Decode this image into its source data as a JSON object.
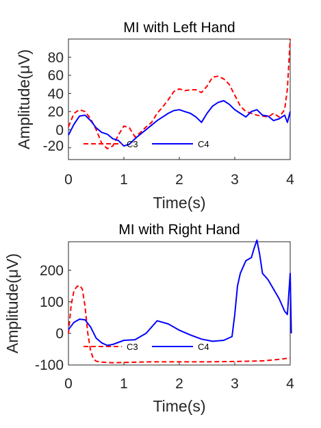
{
  "chart_data": [
    {
      "type": "line",
      "title": "MI with Left Hand",
      "xlabel": "Time(s)",
      "ylabel": "Amplitude(μV)",
      "xlim": [
        0,
        4
      ],
      "ylim": [
        -33,
        100
      ],
      "xticks": [
        "0",
        "1",
        "2",
        "3",
        "4"
      ],
      "yticks": [
        "-20",
        "0",
        "20",
        "40",
        "60",
        "80"
      ],
      "legend_position": "bottom-center",
      "series": [
        {
          "name": "C3",
          "color": "#ff0000",
          "style": "dashed",
          "x": [
            0,
            0.1,
            0.2,
            0.3,
            0.4,
            0.5,
            0.6,
            0.7,
            0.8,
            0.9,
            1.0,
            1.1,
            1.2,
            1.3,
            1.4,
            1.5,
            1.6,
            1.7,
            1.8,
            1.9,
            2.0,
            2.1,
            2.2,
            2.3,
            2.4,
            2.5,
            2.6,
            2.7,
            2.8,
            2.9,
            3.0,
            3.1,
            3.2,
            3.3,
            3.4,
            3.5,
            3.6,
            3.7,
            3.8,
            3.9,
            3.95,
            4.0
          ],
          "values": [
            3,
            18,
            22,
            20,
            12,
            0,
            -15,
            -21,
            -18,
            -6,
            4,
            2,
            -8,
            -3,
            3,
            8,
            18,
            25,
            33,
            42,
            45,
            43,
            44,
            44,
            41,
            48,
            58,
            59,
            56,
            50,
            38,
            26,
            20,
            18,
            16,
            15,
            14,
            18,
            14,
            22,
            45,
            100
          ]
        },
        {
          "name": "C4",
          "color": "#0000ff",
          "style": "solid",
          "x": [
            0,
            0.1,
            0.2,
            0.3,
            0.4,
            0.5,
            0.6,
            0.7,
            0.8,
            0.9,
            1.0,
            1.1,
            1.2,
            1.3,
            1.4,
            1.5,
            1.6,
            1.7,
            1.8,
            1.9,
            2.0,
            2.1,
            2.2,
            2.3,
            2.4,
            2.5,
            2.6,
            2.7,
            2.8,
            2.9,
            3.0,
            3.1,
            3.2,
            3.3,
            3.4,
            3.5,
            3.6,
            3.7,
            3.8,
            3.9,
            3.95,
            4.0
          ],
          "values": [
            -6,
            6,
            15,
            16,
            10,
            2,
            -3,
            -5,
            -10,
            -12,
            -18,
            -16,
            -10,
            -5,
            0,
            5,
            10,
            14,
            18,
            21,
            22,
            20,
            18,
            14,
            8,
            18,
            26,
            30,
            32,
            28,
            22,
            18,
            14,
            20,
            22,
            16,
            15,
            10,
            12,
            16,
            8,
            20
          ]
        }
      ]
    },
    {
      "type": "line",
      "title": "MI with Right Hand",
      "xlabel": "Time(s)",
      "ylabel": "Amplitude(μV)",
      "xlim": [
        0,
        4
      ],
      "ylim": [
        -100,
        290
      ],
      "xticks": [
        "0",
        "1",
        "2",
        "3",
        "4"
      ],
      "yticks": [
        "-100",
        "0",
        "100",
        "200"
      ],
      "legend_position": "bottom-center",
      "series": [
        {
          "name": "C3",
          "color": "#ff0000",
          "style": "dashed",
          "x": [
            0,
            0.05,
            0.1,
            0.15,
            0.2,
            0.25,
            0.3,
            0.35,
            0.4,
            0.45,
            0.5,
            0.6,
            0.8,
            1.0,
            1.5,
            2.0,
            2.5,
            3.0,
            3.5,
            3.8,
            4.0
          ],
          "values": [
            0,
            90,
            135,
            148,
            152,
            140,
            85,
            0,
            -55,
            -80,
            -88,
            -91,
            -93,
            -92,
            -90,
            -90,
            -90,
            -89,
            -87,
            -82,
            -78
          ]
        },
        {
          "name": "C4",
          "color": "#0000ff",
          "style": "solid",
          "x": [
            0,
            0.1,
            0.2,
            0.3,
            0.4,
            0.5,
            0.6,
            0.7,
            0.8,
            1.0,
            1.2,
            1.4,
            1.6,
            1.8,
            2.0,
            2.2,
            2.4,
            2.6,
            2.8,
            2.95,
            3.0,
            3.05,
            3.1,
            3.2,
            3.3,
            3.35,
            3.4,
            3.45,
            3.5,
            3.6,
            3.7,
            3.8,
            3.9,
            3.95,
            4.0,
            4.02
          ],
          "values": [
            12,
            35,
            45,
            43,
            20,
            -15,
            -30,
            -38,
            -35,
            -22,
            -20,
            0,
            40,
            30,
            10,
            -5,
            -18,
            -25,
            -22,
            -10,
            60,
            150,
            190,
            230,
            240,
            270,
            295,
            250,
            190,
            170,
            140,
            110,
            70,
            60,
            190,
            0
          ]
        }
      ]
    }
  ]
}
